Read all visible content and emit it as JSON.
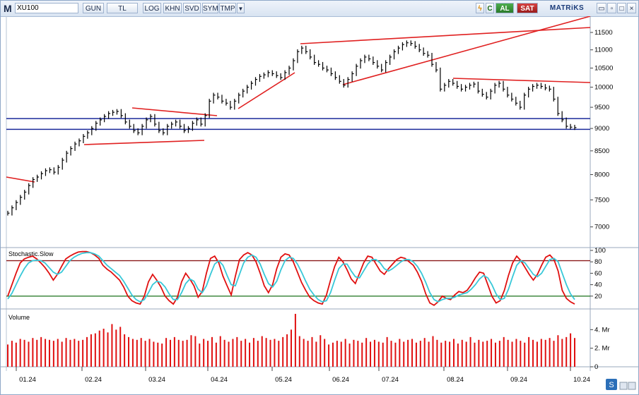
{
  "toolbar": {
    "menu_glyph": "M",
    "symbol": "XU100",
    "buttons": [
      "GUN",
      "TL",
      "LOG",
      "KHN",
      "SVD",
      "SYM",
      "TMP"
    ],
    "dropdown_glyph": "▼",
    "bolt_glyph": "ϟ",
    "sync_glyph": "C",
    "buy_label": "AL",
    "sell_label": "SAT",
    "brand": "MATRiKS",
    "window_buttons": [
      "▭",
      "▫",
      "□",
      "×"
    ],
    "colors": {
      "buy": "#2e8b2e",
      "sell": "#b22222",
      "brand": "#1a3a78"
    }
  },
  "chart_data": [
    {
      "type": "line",
      "panel": "price",
      "series_style": "hlc-bars",
      "y_ticks": [
        7000,
        7500,
        8000,
        8500,
        9000,
        9500,
        10000,
        10500,
        11000,
        11500
      ],
      "ylim": [
        6700,
        11900
      ],
      "y_scale": "log",
      "x_ticks": [
        "01.24",
        "02.24",
        "03.24",
        "04.24",
        "05.24",
        "06.24",
        "07.24",
        "08.24",
        "09.24",
        "10.24"
      ],
      "grid": false,
      "series": [
        {
          "color": "#000000",
          "values": [
            7250,
            7350,
            7450,
            7550,
            7650,
            7780,
            7900,
            7950,
            8020,
            8080,
            8100,
            8050,
            8150,
            8300,
            8450,
            8550,
            8650,
            8720,
            8820,
            8900,
            9000,
            9120,
            9200,
            9280,
            9350,
            9380,
            9400,
            9300,
            9150,
            9050,
            8950,
            8900,
            9050,
            9200,
            9280,
            9100,
            8950,
            8900,
            9050,
            9100,
            9150,
            9050,
            8950,
            9000,
            9120,
            9200,
            9100,
            9300,
            9650,
            9800,
            9750,
            9650,
            9600,
            9500,
            9650,
            9800,
            9900,
            10000,
            10100,
            10200,
            10280,
            10320,
            10380,
            10350,
            10300,
            10250,
            10380,
            10500,
            10700,
            10950,
            11050,
            10950,
            10800,
            10650,
            10600,
            10500,
            10450,
            10350,
            10250,
            10150,
            10050,
            10200,
            10350,
            10550,
            10700,
            10800,
            10750,
            10650,
            10550,
            10450,
            10650,
            10800,
            10950,
            11050,
            11150,
            11200,
            11180,
            11100,
            11000,
            10900,
            10850,
            10600,
            10450,
            9950,
            10050,
            10150,
            10100,
            10020,
            9950,
            10000,
            10050,
            10080,
            9900,
            9820,
            9750,
            9900,
            10050,
            10100,
            9950,
            9800,
            9700,
            9600,
            9500,
            9800,
            9950,
            10020,
            10050,
            10020,
            9980,
            9950,
            9700,
            9350,
            9200,
            9050,
            9030,
            9020
          ]
        }
      ],
      "trendlines": [
        {
          "color": "#e02020",
          "label": "",
          "points": [
            [
              "12.23",
              8000
            ],
            [
              "01.24",
              7850
            ]
          ]
        },
        {
          "color": "#e02020",
          "label": "",
          "points": [
            [
              "02.24",
              8630
            ],
            [
              "04.24",
              8720
            ]
          ]
        },
        {
          "color": "#e02020",
          "label": "",
          "points": [
            [
              "02.24",
              9430
            ],
            [
              "04.24",
              9230
            ]
          ]
        },
        {
          "color": "#e02020",
          "label": "",
          "points": [
            [
              "04.24",
              9450
            ],
            [
              "05.24",
              10350
            ]
          ]
        },
        {
          "color": "#e02020",
          "label": "",
          "points": [
            [
              "05.24",
              11100
            ],
            [
              "10.24",
              11550
            ]
          ]
        },
        {
          "color": "#e02020",
          "label": "",
          "points": [
            [
              "06.24",
              10020
            ],
            [
              "10.24",
              11900
            ]
          ]
        },
        {
          "color": "#e02020",
          "label": "",
          "points": [
            [
              "08.24",
              10200
            ],
            [
              "10.24",
              10070
            ]
          ]
        }
      ],
      "hlines": [
        {
          "y": 9230,
          "color": "#1a2a9a"
        },
        {
          "y": 8980,
          "color": "#1a2a9a"
        }
      ]
    },
    {
      "type": "line",
      "panel": "oscillator",
      "title": "Stochastic.Slow",
      "y_ticks": [
        20,
        40,
        60,
        80,
        100
      ],
      "ylim": [
        0,
        100
      ],
      "levels": [
        {
          "y": 82,
          "color": "#8b1a1a"
        },
        {
          "y": 20,
          "color": "#2e7d2e"
        }
      ],
      "series": [
        {
          "color": "#e01010",
          "values": [
            20,
            40,
            60,
            78,
            85,
            88,
            90,
            85,
            78,
            70,
            60,
            48,
            58,
            72,
            85,
            90,
            94,
            97,
            98,
            98,
            96,
            92,
            86,
            74,
            67,
            62,
            55,
            48,
            36,
            20,
            12,
            8,
            6,
            20,
            45,
            58,
            48,
            36,
            20,
            12,
            6,
            18,
            45,
            60,
            50,
            38,
            18,
            28,
            60,
            86,
            90,
            78,
            55,
            38,
            22,
            55,
            84,
            92,
            96,
            92,
            80,
            60,
            38,
            26,
            40,
            68,
            88,
            94,
            92,
            80,
            62,
            44,
            30,
            18,
            12,
            8,
            6,
            22,
            48,
            72,
            88,
            80,
            66,
            50,
            42,
            60,
            78,
            90,
            88,
            76,
            64,
            58,
            68,
            76,
            84,
            88,
            86,
            80,
            74,
            62,
            46,
            24,
            8,
            4,
            10,
            20,
            16,
            14,
            22,
            28,
            26,
            30,
            40,
            52,
            62,
            60,
            40,
            20,
            8,
            12,
            30,
            56,
            78,
            90,
            82,
            70,
            58,
            48,
            58,
            74,
            88,
            92,
            84,
            64,
            30,
            16,
            10,
            6
          ]
        },
        {
          "color": "#38c8d8",
          "values": [
            15,
            25,
            40,
            55,
            68,
            78,
            82,
            83,
            82,
            78,
            70,
            62,
            58,
            62,
            72,
            82,
            88,
            92,
            95,
            96,
            96,
            94,
            90,
            82,
            74,
            68,
            62,
            56,
            46,
            34,
            22,
            14,
            10,
            14,
            26,
            40,
            46,
            44,
            36,
            24,
            14,
            14,
            26,
            42,
            50,
            46,
            32,
            26,
            38,
            58,
            76,
            82,
            74,
            56,
            40,
            38,
            58,
            78,
            88,
            92,
            88,
            76,
            58,
            42,
            36,
            46,
            66,
            82,
            88,
            86,
            76,
            62,
            46,
            32,
            22,
            14,
            10,
            12,
            26,
            48,
            68,
            76,
            76,
            64,
            54,
            52,
            64,
            76,
            84,
            84,
            78,
            68,
            64,
            68,
            74,
            80,
            84,
            84,
            80,
            72,
            60,
            44,
            26,
            14,
            10,
            14,
            16,
            16,
            18,
            22,
            24,
            26,
            32,
            40,
            50,
            56,
            52,
            40,
            24,
            14,
            16,
            32,
            54,
            74,
            82,
            78,
            68,
            58,
            54,
            60,
            72,
            84,
            86,
            80,
            60,
            40,
            24,
            14
          ]
        }
      ]
    },
    {
      "type": "bar",
      "panel": "volume",
      "title": "Volume",
      "y_ticks": [
        "0",
        "2. Mr",
        "4. Mr"
      ],
      "ylim": [
        0,
        6
      ],
      "series": [
        {
          "color": "#e01010",
          "values": [
            2.4,
            2.8,
            2.6,
            3.0,
            2.9,
            2.7,
            3.1,
            2.9,
            3.2,
            3.0,
            2.9,
            2.8,
            3.0,
            2.7,
            3.1,
            2.9,
            3.0,
            2.8,
            2.9,
            3.2,
            3.5,
            3.6,
            3.9,
            4.1,
            3.7,
            4.6,
            4.0,
            4.3,
            3.5,
            3.2,
            3.0,
            2.9,
            3.1,
            2.8,
            3.0,
            2.7,
            2.6,
            2.5,
            3.1,
            2.9,
            3.2,
            2.9,
            2.8,
            2.9,
            3.4,
            3.3,
            2.5,
            3.0,
            2.8,
            3.2,
            2.6,
            3.3,
            2.9,
            2.7,
            3.0,
            3.2,
            2.8,
            3.0,
            2.6,
            3.1,
            2.8,
            3.3,
            3.1,
            2.9,
            3.0,
            2.8,
            3.2,
            3.5,
            4.0,
            5.7,
            3.3,
            3.0,
            2.8,
            3.2,
            2.7,
            3.4,
            3.0,
            2.4,
            2.6,
            2.8,
            2.7,
            3.0,
            2.5,
            2.9,
            2.8,
            2.6,
            3.1,
            2.7,
            2.9,
            2.7,
            2.6,
            3.2,
            2.8,
            2.6,
            3.0,
            2.7,
            2.9,
            3.0,
            2.6,
            2.8,
            3.1,
            2.7,
            3.3,
            2.9,
            2.6,
            2.8,
            2.7,
            3.0,
            2.5,
            2.9,
            2.7,
            3.2,
            2.6,
            2.9,
            2.7,
            2.8,
            3.0,
            2.6,
            2.8,
            3.2,
            2.9,
            2.7,
            3.0,
            2.8,
            2.6,
            3.2,
            2.9,
            2.7,
            3.0,
            2.9,
            3.1,
            2.8,
            3.4,
            3.0,
            3.2,
            3.6,
            3.1
          ]
        }
      ]
    }
  ]
}
